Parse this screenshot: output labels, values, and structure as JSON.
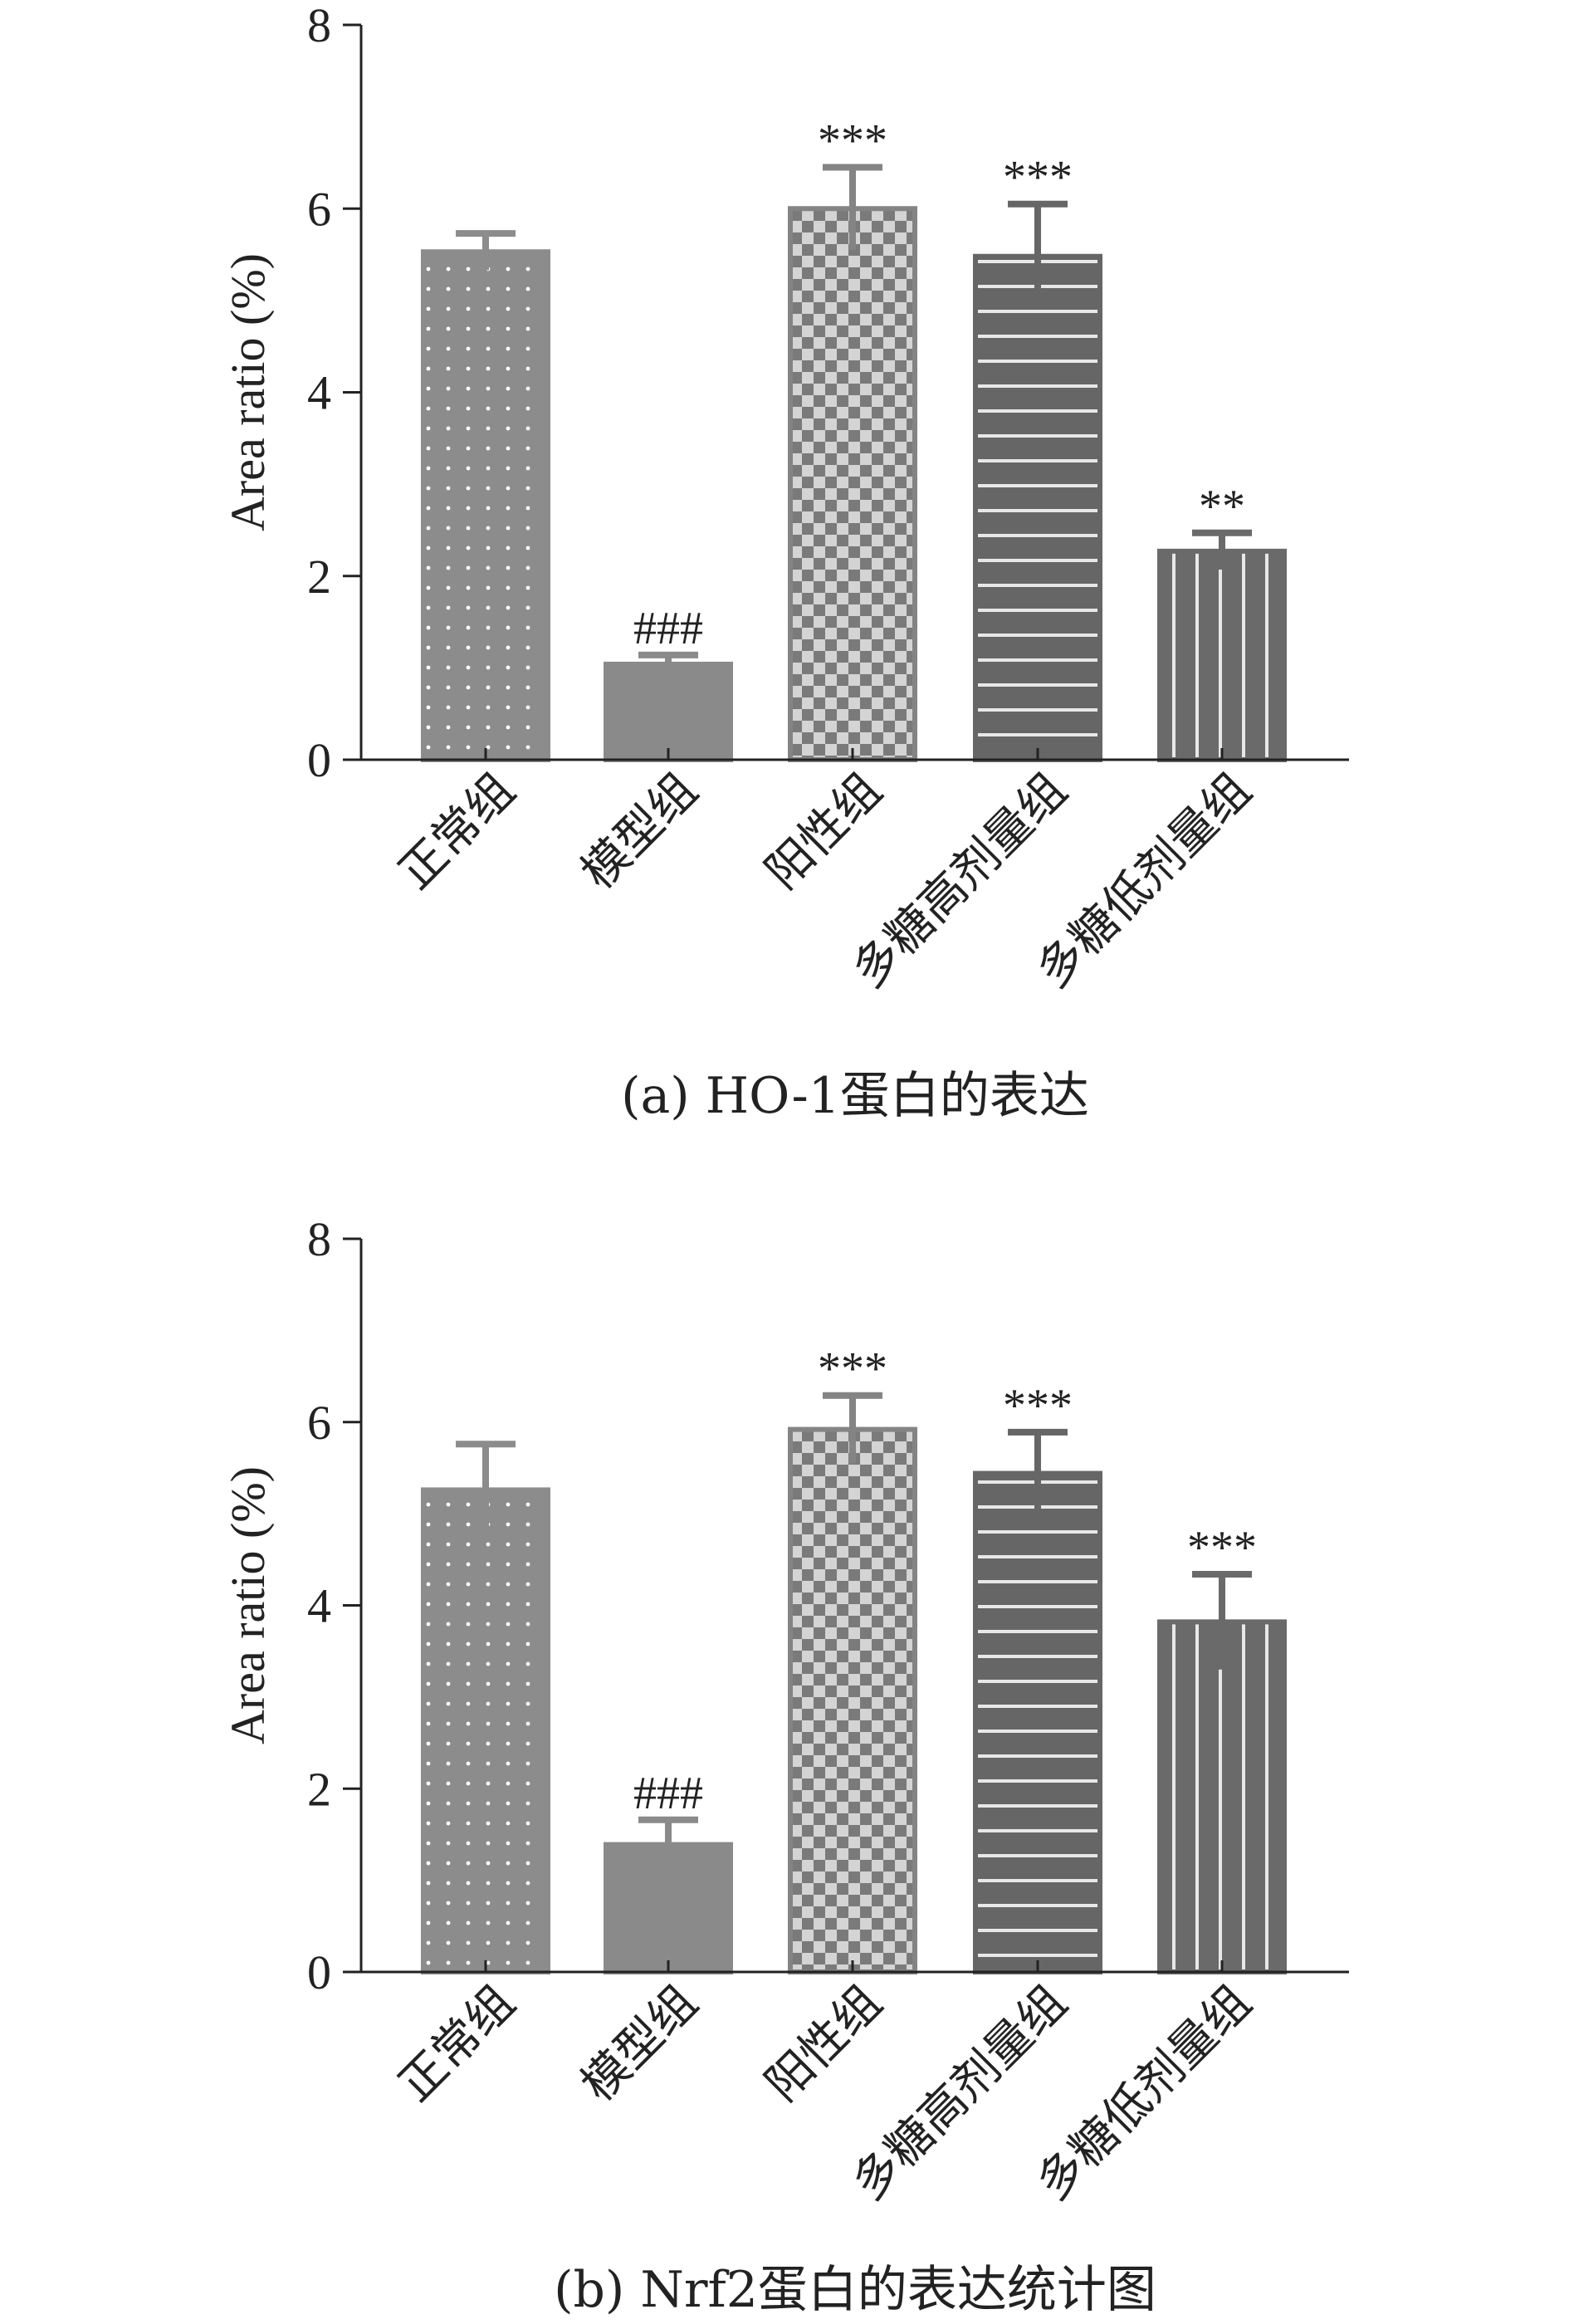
{
  "chart_data": [
    {
      "type": "bar",
      "caption": "(a) HO-1蛋白的表达",
      "ylabel": "Area ratio (%)",
      "ylim": [
        0,
        8
      ],
      "yticks": [
        "0",
        "2",
        "4",
        "6",
        "8"
      ],
      "categories": [
        "正常组",
        "模型组",
        "阳性组",
        "多糖高剂量组",
        "多糖低剂量组"
      ],
      "values": [
        5.53,
        1.04,
        6.0,
        5.48,
        2.27
      ],
      "errors": [
        0.2,
        0.1,
        0.45,
        0.57,
        0.2
      ],
      "significance": [
        "",
        "###",
        "***",
        "***",
        "**"
      ],
      "patterns": [
        "dots",
        "solid",
        "checker",
        "hlines",
        "vlines"
      ],
      "colors": [
        "#8c8c8c",
        "#8a8a8a",
        "#848484",
        "#666666",
        "#6a6a6a"
      ]
    },
    {
      "type": "bar",
      "caption": "(b) Nrf2蛋白的表达统计图",
      "ylabel": "Area ratio (%)",
      "ylim": [
        0,
        8
      ],
      "yticks": [
        "0",
        "2",
        "4",
        "6",
        "8"
      ],
      "categories": [
        "正常组",
        "模型组",
        "阳性组",
        "多糖高剂量组",
        "多糖低剂量组"
      ],
      "values": [
        5.26,
        1.39,
        5.92,
        5.44,
        3.82
      ],
      "errors": [
        0.5,
        0.27,
        0.37,
        0.45,
        0.52
      ],
      "significance": [
        "",
        "###",
        "***",
        "***",
        "***"
      ],
      "patterns": [
        "dots",
        "solid",
        "checker",
        "hlines",
        "vlines"
      ],
      "colors": [
        "#8c8c8c",
        "#8a8a8a",
        "#848484",
        "#666666",
        "#6a6a6a"
      ]
    }
  ]
}
